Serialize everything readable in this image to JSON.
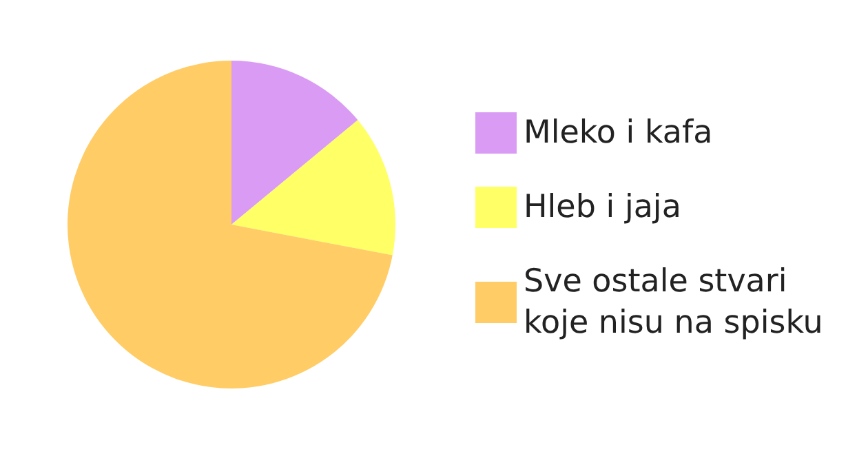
{
  "chart_data": {
    "type": "pie",
    "categories": [
      "Mleko i kafa",
      "Hleb i jaja",
      "Sve ostale stvari koje nisu na spisku"
    ],
    "values": [
      14,
      14,
      72
    ],
    "colors": [
      "#da9bf5",
      "#ffff66",
      "#ffcc66"
    ],
    "legend": "right"
  }
}
